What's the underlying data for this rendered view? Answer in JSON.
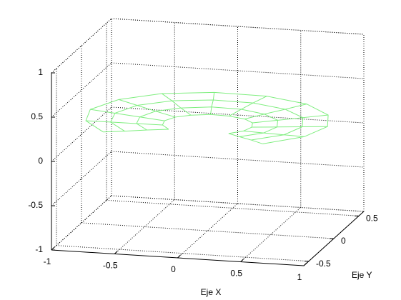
{
  "chart_data": {
    "type": "mesh",
    "xlabel": "Eje X",
    "ylabel": "Eje Y",
    "xlim": [
      -1,
      1
    ],
    "ylim": [
      -0.6,
      0.6
    ],
    "zlim": [
      -1,
      1
    ],
    "xticks": [
      -1,
      -0.5,
      0,
      0.5,
      1
    ],
    "yticks": [
      -0.5,
      0,
      0.5
    ],
    "zticks": [
      -1,
      -0.5,
      0,
      0.5,
      1
    ],
    "grid": true,
    "color": "#80ee80",
    "x": [
      [
        0.23,
        0.32,
        0.35,
        0.32,
        0.23,
        0.09,
        -0.06,
        -0.2,
        -0.3,
        -0.35,
        -0.33,
        -0.25
      ],
      [
        0.35,
        0.5,
        0.55,
        0.5,
        0.35,
        0.14,
        -0.1,
        -0.32,
        -0.48,
        -0.55,
        -0.52,
        -0.39
      ],
      [
        0.48,
        0.68,
        0.75,
        0.68,
        0.48,
        0.19,
        -0.13,
        -0.43,
        -0.65,
        -0.75,
        -0.71,
        -0.53
      ],
      [
        0.61,
        0.86,
        0.95,
        0.86,
        0.61,
        0.25,
        -0.17,
        -0.55,
        -0.82,
        -0.95,
        -0.89,
        -0.67
      ]
    ],
    "y": [
      [
        -0.16,
        -0.09,
        0,
        0.09,
        0.16,
        0.2,
        0.21,
        0.17,
        0.11,
        0.02,
        -0.07,
        -0.15
      ],
      [
        -0.25,
        -0.14,
        0,
        0.14,
        0.25,
        0.32,
        0.33,
        0.27,
        0.17,
        0.03,
        -0.11,
        -0.23
      ],
      [
        -0.34,
        -0.19,
        0,
        0.19,
        0.34,
        0.43,
        0.44,
        0.37,
        0.23,
        0.04,
        -0.15,
        -0.32
      ],
      [
        -0.44,
        -0.24,
        0,
        0.24,
        0.44,
        0.55,
        0.56,
        0.47,
        0.29,
        0.05,
        -0.19,
        -0.4
      ]
    ],
    "z": [
      [
        0.2,
        0.2,
        0.2,
        0.2,
        0.2,
        0.2,
        0.2,
        0.2,
        0.2,
        0.2,
        0.2,
        0.2
      ],
      [
        0.22,
        0.22,
        0.22,
        0.22,
        0.22,
        0.22,
        0.22,
        0.22,
        0.22,
        0.22,
        0.22,
        0.22
      ],
      [
        0.24,
        0.24,
        0.24,
        0.24,
        0.24,
        0.24,
        0.24,
        0.24,
        0.24,
        0.24,
        0.24,
        0.24
      ],
      [
        0.26,
        0.26,
        0.26,
        0.26,
        0.26,
        0.26,
        0.26,
        0.26,
        0.26,
        0.26,
        0.26,
        0.26
      ]
    ]
  }
}
